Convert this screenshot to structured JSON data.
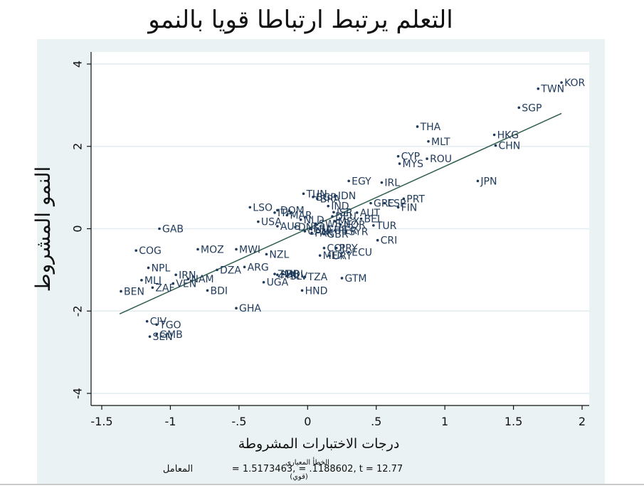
{
  "title": "التعلم يرتبط ارتباطا قويا بالنمو",
  "chart_data": {
    "type": "scatter",
    "title": "التعلم يرتبط ارتباطا قويا بالنمو",
    "xlabel": "درجات الاختبارات المشروطة",
    "ylabel": "النمو المشروط",
    "xlim": [
      -1.5,
      2
    ],
    "ylim": [
      -4,
      4
    ],
    "xticks": [
      -1.5,
      -1,
      -0.5,
      0,
      0.5,
      1,
      1.5,
      2
    ],
    "xtick_labels": [
      "-1.5",
      "-1",
      "-.5",
      "0",
      ".5",
      "1",
      "1.5",
      "2"
    ],
    "yticks": [
      -4,
      -2,
      0,
      2,
      4
    ],
    "ytick_labels": [
      "-4",
      "-2",
      "0",
      "2",
      "4"
    ],
    "grid": true,
    "colors": {
      "points": "#1f3a5a",
      "fit_line": "#2e5e4e",
      "background": "#eaf2f3",
      "plot_area": "#ffffff",
      "grid": "#e1ebf0"
    },
    "fit_line": {
      "x": [
        -1.37,
        1.85
      ],
      "y": [
        -2.07,
        2.8
      ]
    },
    "points": [
      {
        "label": "KOR",
        "x": 1.85,
        "y": 3.55
      },
      {
        "label": "TWN",
        "x": 1.68,
        "y": 3.4
      },
      {
        "label": "SGP",
        "x": 1.54,
        "y": 2.94
      },
      {
        "label": "THA",
        "x": 0.8,
        "y": 2.48
      },
      {
        "label": "HKG",
        "x": 1.36,
        "y": 2.28
      },
      {
        "label": "MLT",
        "x": 0.88,
        "y": 2.12
      },
      {
        "label": "CHN",
        "x": 1.37,
        "y": 2.02
      },
      {
        "label": "CYP",
        "x": 0.66,
        "y": 1.76
      },
      {
        "label": "ROU",
        "x": 0.87,
        "y": 1.7
      },
      {
        "label": "MYS",
        "x": 0.67,
        "y": 1.58
      },
      {
        "label": "JPN",
        "x": 1.24,
        "y": 1.16
      },
      {
        "label": "EGY",
        "x": 0.3,
        "y": 1.16
      },
      {
        "label": "IRL",
        "x": 0.54,
        "y": 1.12
      },
      {
        "label": "TUN",
        "x": -0.03,
        "y": 0.85
      },
      {
        "label": "BGR",
        "x": 0.04,
        "y": 0.77
      },
      {
        "label": "IDN",
        "x": 0.2,
        "y": 0.8
      },
      {
        "label": "BRA",
        "x": 0.07,
        "y": 0.73
      },
      {
        "label": "PRT",
        "x": 0.7,
        "y": 0.73
      },
      {
        "label": "GRC",
        "x": 0.46,
        "y": 0.62
      },
      {
        "label": "ESP",
        "x": 0.56,
        "y": 0.62
      },
      {
        "label": "IND",
        "x": 0.15,
        "y": 0.55
      },
      {
        "label": "FIN",
        "x": 0.66,
        "y": 0.52
      },
      {
        "label": "LSO",
        "x": -0.42,
        "y": 0.52
      },
      {
        "label": "DOM",
        "x": -0.22,
        "y": 0.45
      },
      {
        "label": "ISR",
        "x": 0.19,
        "y": 0.4
      },
      {
        "label": "AUT",
        "x": 0.36,
        "y": 0.39
      },
      {
        "label": "ITA",
        "x": -0.24,
        "y": 0.39
      },
      {
        "label": "MAR",
        "x": -0.15,
        "y": 0.33
      },
      {
        "label": "DEU",
        "x": 0.18,
        "y": 0.3
      },
      {
        "label": "BEL",
        "x": 0.39,
        "y": 0.24
      },
      {
        "label": "NLD",
        "x": -0.05,
        "y": 0.22
      },
      {
        "label": "MEX",
        "x": 0.2,
        "y": 0.18
      },
      {
        "label": "USA",
        "x": -0.36,
        "y": 0.17
      },
      {
        "label": "SWE",
        "x": 0.06,
        "y": 0.12
      },
      {
        "label": "NOR",
        "x": 0.24,
        "y": 0.1
      },
      {
        "label": "TUR",
        "x": 0.48,
        "y": 0.08
      },
      {
        "label": "AUS",
        "x": -0.22,
        "y": 0.06
      },
      {
        "label": "DNK",
        "x": -0.09,
        "y": 0.04
      },
      {
        "label": "FRA",
        "x": 0.02,
        "y": 0.0
      },
      {
        "label": "CHE",
        "x": 0.12,
        "y": -0.02
      },
      {
        "label": "CAN",
        "x": -0.02,
        "y": -0.06
      },
      {
        "label": "PER",
        "x": 0.2,
        "y": -0.04
      },
      {
        "label": "SYR",
        "x": 0.28,
        "y": -0.07
      },
      {
        "label": "PAK",
        "x": 0.03,
        "y": -0.1
      },
      {
        "label": "GBR",
        "x": 0.12,
        "y": -0.13
      },
      {
        "label": "CRI",
        "x": 0.51,
        "y": -0.28
      },
      {
        "label": "COL",
        "x": 0.12,
        "y": -0.47
      },
      {
        "label": "PRY",
        "x": 0.21,
        "y": -0.47
      },
      {
        "label": "ECU",
        "x": 0.3,
        "y": -0.57
      },
      {
        "label": "MEX",
        "x": 0.09,
        "y": -0.65
      },
      {
        "label": "URY",
        "x": 0.16,
        "y": -0.66
      },
      {
        "label": "GAB",
        "x": -1.08,
        "y": 0.0
      },
      {
        "label": "COG",
        "x": -1.25,
        "y": -0.53
      },
      {
        "label": "MOZ",
        "x": -0.8,
        "y": -0.5
      },
      {
        "label": "MWI",
        "x": -0.52,
        "y": -0.5
      },
      {
        "label": "NZL",
        "x": -0.3,
        "y": -0.62
      },
      {
        "label": "NPL",
        "x": -1.16,
        "y": -0.95
      },
      {
        "label": "ARG",
        "x": -0.46,
        "y": -0.93
      },
      {
        "label": "DZA",
        "x": -0.66,
        "y": -1.0
      },
      {
        "label": "IRN",
        "x": -0.96,
        "y": -1.12
      },
      {
        "label": "MLI",
        "x": -1.21,
        "y": -1.25
      },
      {
        "label": "NAM",
        "x": -0.87,
        "y": -1.22
      },
      {
        "label": "VEN",
        "x": -0.98,
        "y": -1.33
      },
      {
        "label": "ZAF",
        "x": -1.13,
        "y": -1.43
      },
      {
        "label": "ZMB",
        "x": -0.24,
        "y": -1.1
      },
      {
        "label": "BOL",
        "x": -0.18,
        "y": -1.1
      },
      {
        "label": "PHL",
        "x": -0.22,
        "y": -1.12
      },
      {
        "label": "SLV",
        "x": -0.15,
        "y": -1.15
      },
      {
        "label": "UGA",
        "x": -0.32,
        "y": -1.3
      },
      {
        "label": "TZA",
        "x": -0.02,
        "y": -1.17
      },
      {
        "label": "GTM",
        "x": 0.25,
        "y": -1.2
      },
      {
        "label": "BEN",
        "x": -1.36,
        "y": -1.52
      },
      {
        "label": "BDI",
        "x": -0.73,
        "y": -1.5
      },
      {
        "label": "HND",
        "x": -0.04,
        "y": -1.5
      },
      {
        "label": "GHA",
        "x": -0.52,
        "y": -1.93
      },
      {
        "label": "CIV",
        "x": -1.17,
        "y": -2.25
      },
      {
        "label": "TGO",
        "x": -1.1,
        "y": -2.33
      },
      {
        "label": "GMB",
        "x": -1.1,
        "y": -2.57
      },
      {
        "label": "SEN",
        "x": -1.15,
        "y": -2.62
      }
    ],
    "annotation": {
      "main": "= 1.5173463, = .1188602, t = 12.77",
      "coef_label": "المعامل",
      "se_label": "الخطأ المعياري",
      "se_sub": "(قوي)"
    }
  }
}
